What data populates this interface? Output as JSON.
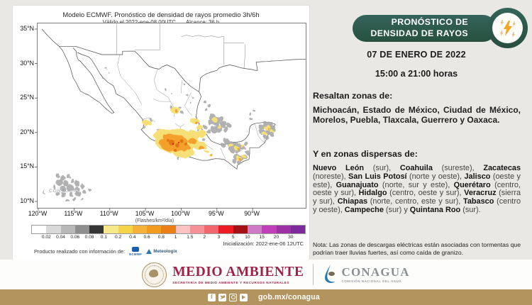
{
  "colors": {
    "background": "#e9e8e5",
    "brand_green": "#2d5c4c",
    "semarnat_maroon": "#9d2449",
    "gobmx_gold": "#b3945e",
    "conagua_gray": "#8a8f93",
    "lightning_orange": "#f5a71e"
  },
  "map_panel": {
    "title": "Modelo ECMWF. Pronóstico de densidad de rayos promedio 3h/6h",
    "valid_label": "Válido el 2022-ene-08 00UTC",
    "range_label": "Alcance: 36 h",
    "lat_ticks": [
      "35°N",
      "30°N",
      "25°N",
      "20°N",
      "15°N",
      "10°N"
    ],
    "lon_ticks": [
      "120°W",
      "115°W",
      "110°W",
      "105°W",
      "100°W",
      "95°W",
      "90°W"
    ],
    "units_label": "(Flashes/km²/día)",
    "colorbar": {
      "tick_labels": [
        "0.02",
        "0.04",
        "0.06",
        "0.08",
        "0.1",
        "0.2",
        "0.4",
        "0.6",
        "0.8",
        "1",
        "1.5",
        "2",
        "3",
        "5",
        "10",
        "15",
        "20",
        "30"
      ],
      "segment_colors": [
        "#ffffff",
        "#d9d9d9",
        "#b8b8b8",
        "#8e8e8e",
        "#353535",
        "#f6e98c",
        "#f6d44a",
        "#f6b13a",
        "#f29b1f",
        "#eb7e14",
        "#f9c4c1",
        "#f59197",
        "#f2666d",
        "#ec1c24",
        "#a31116",
        "#cf7ac6",
        "#c13fb8",
        "#9c31a5",
        "#7c2b9b"
      ],
      "segment_count": 19
    },
    "initialization_label": "Inicialización: 2022-ene-06 12UTC",
    "credit_label": "Producto realizado con información de:",
    "credit_sources": [
      "ECMWF",
      "Meteologix"
    ],
    "watermark": "CONAGUA"
  },
  "forecast_panel": {
    "ribbon_line1": "PRONÓSTICO DE",
    "ribbon_line2": "DENSIDAD DE RAYOS",
    "date": "07 DE ENERO DE 2022",
    "time_range": "15:00 a 21:00 horas",
    "highlight_heading": "Resaltan zonas de:",
    "highlight_text": "Michoacán, Estado de México, Ciudad de México, Morelos, Puebla, Tlaxcala, Guerrero y Oaxaca.",
    "dispersed_heading": "Y en zonas dispersas de:",
    "dispersed_states": [
      {
        "name": "Nuevo León",
        "detail": " (sur), "
      },
      {
        "name": "Coahuila",
        "detail": " (sureste), "
      },
      {
        "name": "Zacatecas",
        "detail": " (noreste), "
      },
      {
        "name": "San Luis Potosí",
        "detail": " (norte y oeste), "
      },
      {
        "name": "Jalisco",
        "detail": " (oeste y este), "
      },
      {
        "name": "Guanajuato",
        "detail": " (norte, sur y este), "
      },
      {
        "name": "Querétaro",
        "detail": " (centro, oeste y sur), "
      },
      {
        "name": "Hidalgo",
        "detail": " (centro, oeste y sur), "
      },
      {
        "name": "Veracruz",
        "detail": " (sierra y sur), "
      },
      {
        "name": "Chiapas",
        "detail": " (norte, centro, este y sur), "
      },
      {
        "name": "Tabasco",
        "detail": " (centro y oeste), "
      },
      {
        "name": "Campeche",
        "detail": " (sur) y "
      },
      {
        "name": "Quintana Roo",
        "detail": " (sur)."
      }
    ],
    "note": "Nota: Las zonas de descargas eléctricas están asociadas con tormentas que podrían traer lluvias fuertes, así como caída de granizo."
  },
  "footer": {
    "semarnat_title": "MEDIO AMBIENTE",
    "semarnat_subtitle": "SECRETARÍA DE MEDIO AMBIENTE Y RECURSOS NATURALES",
    "conagua_title": "CONAGUA",
    "conagua_subtitle": "COMISIÓN NACIONAL DEL AGUA",
    "social": [
      "facebook",
      "twitter",
      "instagram",
      "youtube"
    ],
    "url": "gob.mx/conagua"
  }
}
